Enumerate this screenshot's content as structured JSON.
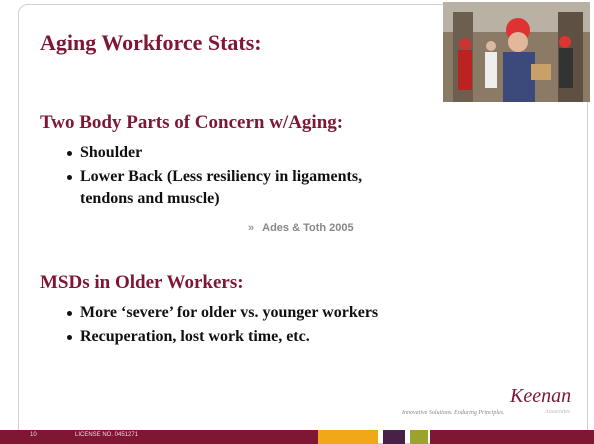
{
  "title": "Aging Workforce Stats:",
  "sections": [
    {
      "heading": "Two Body Parts of Concern w/Aging:",
      "bullets": [
        "Shoulder",
        "Lower Back (Less resiliency in ligaments, tendons and muscle)"
      ],
      "citation": {
        "marker": "»",
        "text": "Ades & Toth 2005"
      }
    },
    {
      "heading": "MSDs in Older Workers:",
      "bullets": [
        "More ‘severe’ for older vs. younger workers",
        "Recuperation, lost work time, etc."
      ]
    }
  ],
  "logo": {
    "name": "Keenan",
    "subtext": "Associates",
    "tagline": "Innovative Solutions. Enduring Principles."
  },
  "footer": {
    "page": "10",
    "license": "LICENSE NO. 0451271"
  }
}
